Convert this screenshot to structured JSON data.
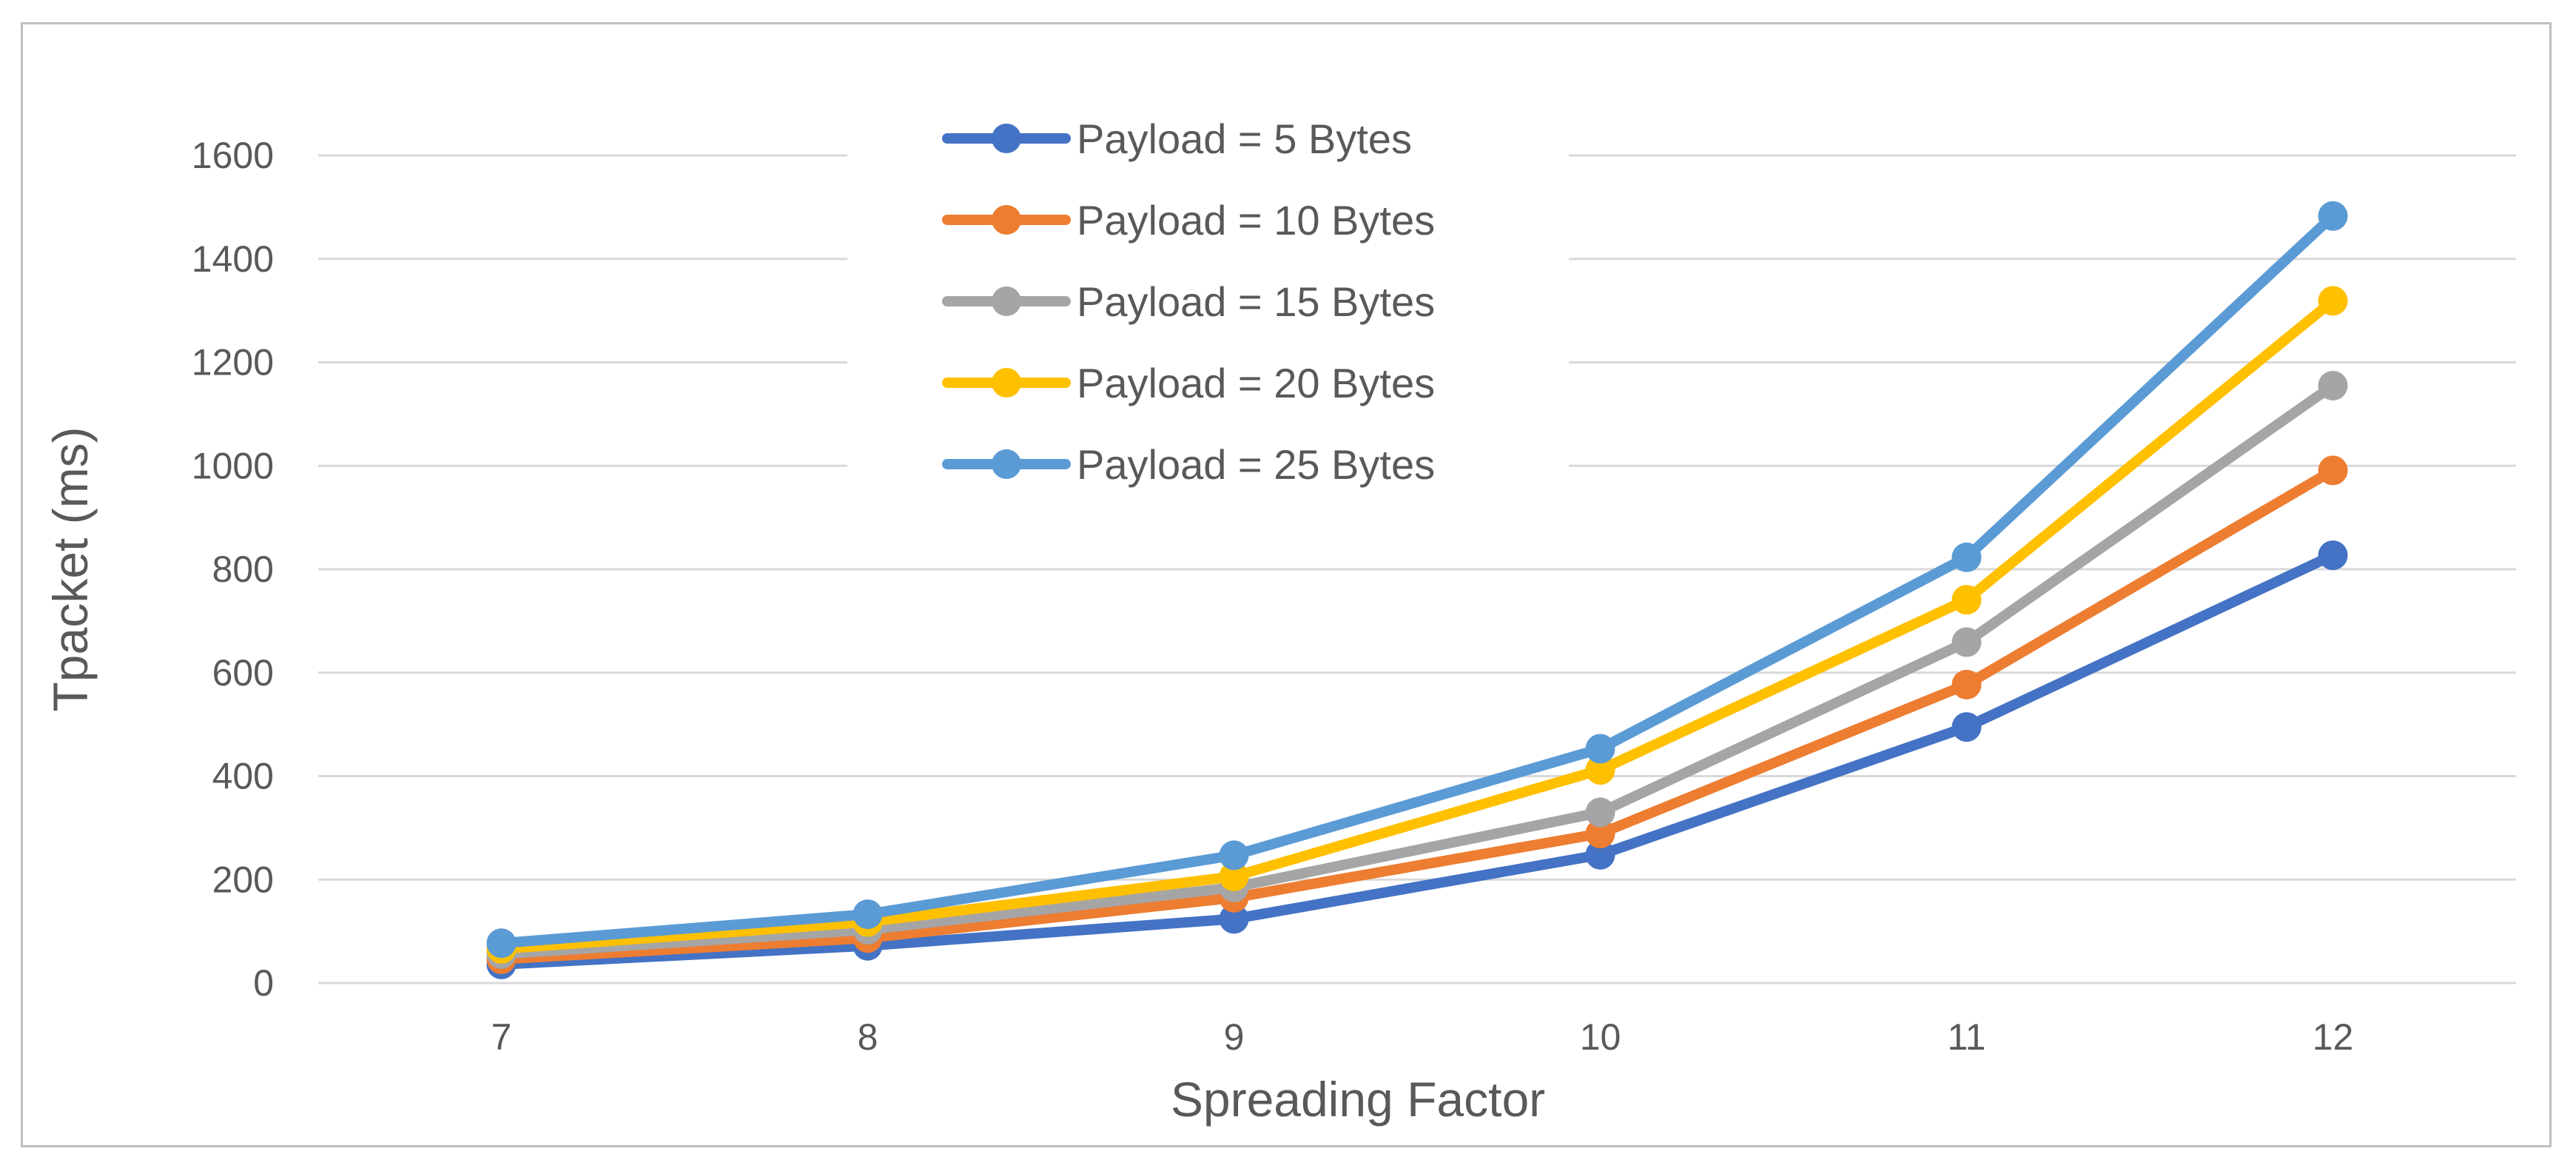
{
  "chart_data": {
    "type": "line",
    "title": "",
    "xlabel": "Spreading Factor",
    "ylabel": "Tpacket (ms)",
    "x": [
      7,
      8,
      9,
      10,
      11,
      12
    ],
    "ylim": [
      0,
      1600
    ],
    "yticks": [
      0,
      200,
      400,
      600,
      800,
      1000,
      1200,
      1400,
      1600
    ],
    "grid": true,
    "legend_position": "top-center",
    "series": [
      {
        "name": "Payload = 5 Bytes",
        "color": "#4472C4",
        "values": [
          36,
          72,
          124,
          248,
          495,
          827
        ]
      },
      {
        "name": "Payload = 10 Bytes",
        "color": "#ED7D31",
        "values": [
          46,
          87,
          165,
          289,
          577,
          991
        ]
      },
      {
        "name": "Payload = 15 Bytes",
        "color": "#A5A5A5",
        "values": [
          56,
          103,
          185,
          330,
          659,
          1155
        ]
      },
      {
        "name": "Payload = 20 Bytes",
        "color": "#FFC000",
        "values": [
          66,
          118,
          206,
          412,
          741,
          1319
        ]
      },
      {
        "name": "Payload = 25 Bytes",
        "color": "#5B9BD5",
        "values": [
          77,
          133,
          247,
          453,
          823,
          1483
        ]
      }
    ]
  }
}
